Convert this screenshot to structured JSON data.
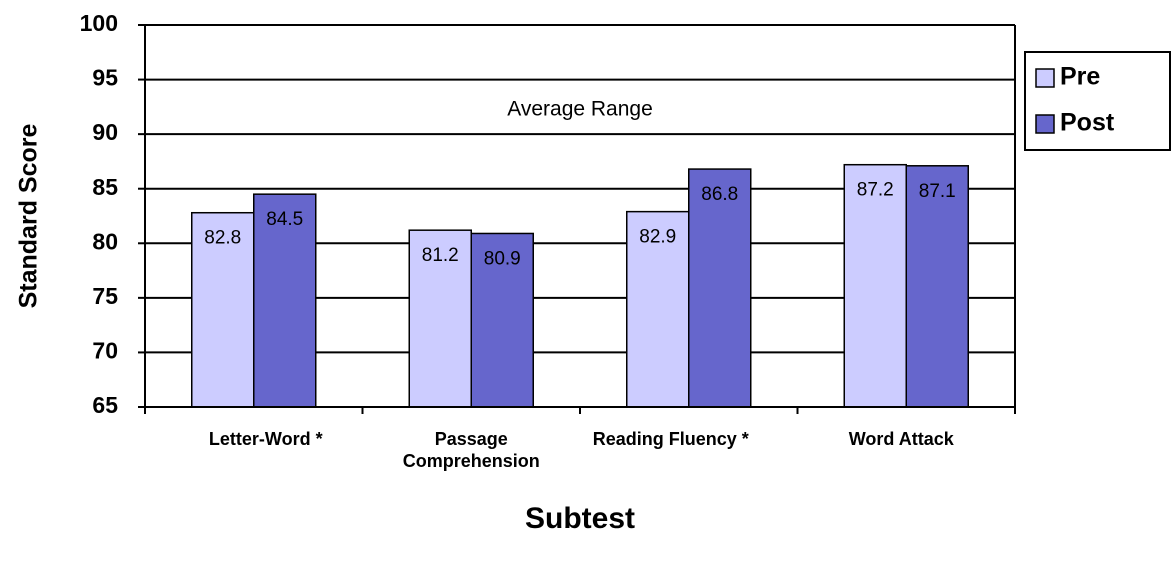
{
  "chart_data": {
    "type": "bar",
    "y_label": "Standard Score",
    "x_label": "Subtest",
    "annotation": "Average Range",
    "categories": [
      "Letter-Word *",
      "Passage Comprehension",
      "Reading Fluency *",
      "Word Attack"
    ],
    "series": [
      {
        "name": "Pre",
        "color": "#ccccff",
        "values": [
          82.8,
          81.2,
          82.9,
          87.2
        ]
      },
      {
        "name": "Post",
        "color": "#6666cc",
        "values": [
          84.5,
          80.9,
          86.8,
          87.1
        ]
      }
    ],
    "ylim": [
      65,
      100
    ],
    "yticks": [
      65,
      70,
      75,
      80,
      85,
      90,
      95,
      100
    ],
    "grid": true,
    "legend": "right"
  }
}
